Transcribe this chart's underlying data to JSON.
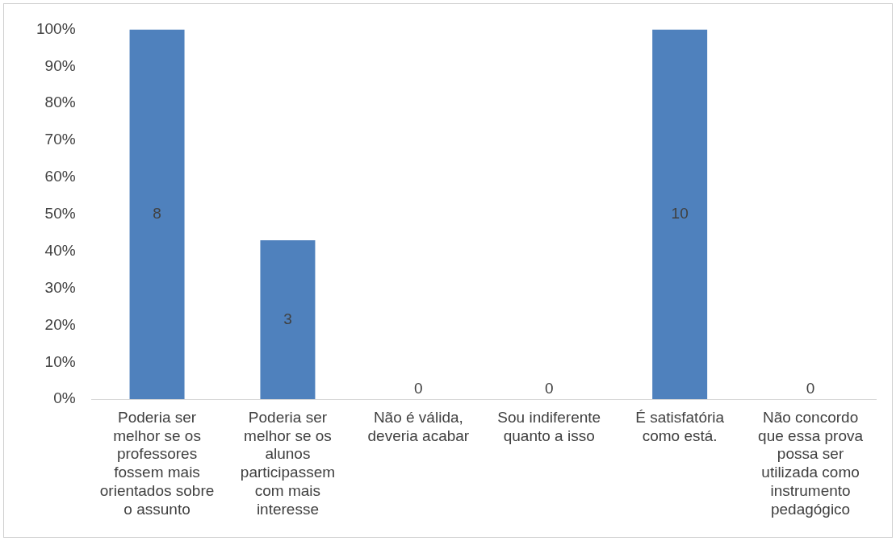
{
  "chart_data": {
    "type": "bar",
    "categories": [
      "Poderia ser melhor se os professores fossem mais orientados sobre o assunto",
      "Poderia ser melhor se os alunos participassem com mais interesse",
      "Não é válida, deveria acabar",
      "Sou indiferente quanto a isso",
      "É satisfatória como está.",
      "Não concordo que essa prova possa ser utilizada como instrumento pedagógico"
    ],
    "values": [
      100,
      43,
      0,
      0,
      100,
      0
    ],
    "annotations": [
      "8",
      "3",
      "0",
      "0",
      "10",
      "0"
    ],
    "color": "#4f81bd",
    "ylim": [
      0,
      100
    ],
    "yticks": [
      {
        "value": 0,
        "label": "0%"
      },
      {
        "value": 10,
        "label": "10%"
      },
      {
        "value": 20,
        "label": "20%"
      },
      {
        "value": 30,
        "label": "30%"
      },
      {
        "value": 40,
        "label": "40%"
      },
      {
        "value": 50,
        "label": "50%"
      },
      {
        "value": 60,
        "label": "60%"
      },
      {
        "value": 70,
        "label": "70%"
      },
      {
        "value": 80,
        "label": "80%"
      },
      {
        "value": 90,
        "label": "90%"
      },
      {
        "value": 100,
        "label": "100%"
      }
    ],
    "grid": false,
    "legend": false
  }
}
